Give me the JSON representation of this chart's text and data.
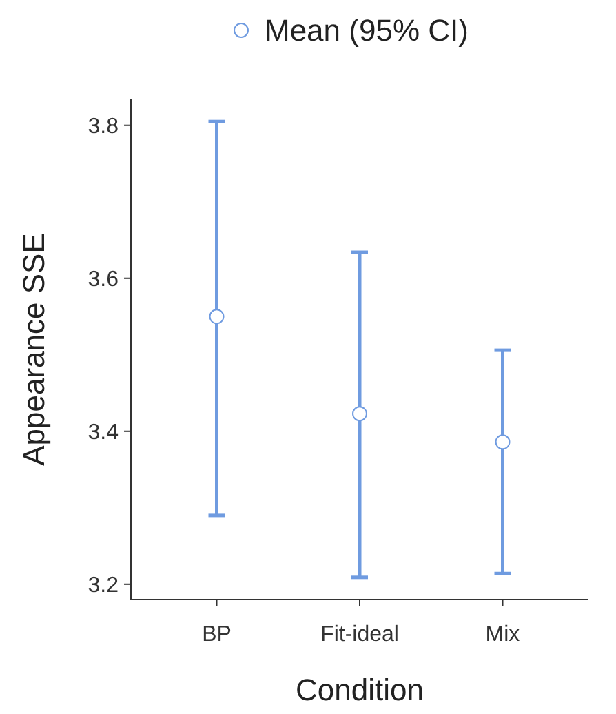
{
  "chart_data": {
    "type": "scatter",
    "xlabel": "Condition",
    "ylabel": "Appearance SSE",
    "categories": [
      "BP",
      "Fit-ideal",
      "Mix"
    ],
    "series": [
      {
        "name": "Mean (95% CI)",
        "color": "#6f9be0",
        "values": [
          3.55,
          3.423,
          3.386
        ],
        "errors": [
          [
            3.29,
            3.805
          ],
          [
            3.209,
            3.634
          ],
          [
            3.214,
            3.506
          ]
        ]
      }
    ],
    "ylim": [
      3.18,
      3.834
    ],
    "yticks": [
      {
        "value": 3.2,
        "label": "3.2"
      },
      {
        "value": 3.4,
        "label": "3.4"
      },
      {
        "value": 3.6,
        "label": "3.6"
      },
      {
        "value": 3.8,
        "label": "3.8"
      }
    ],
    "marker": "circle",
    "legend": "top",
    "grid": false
  }
}
